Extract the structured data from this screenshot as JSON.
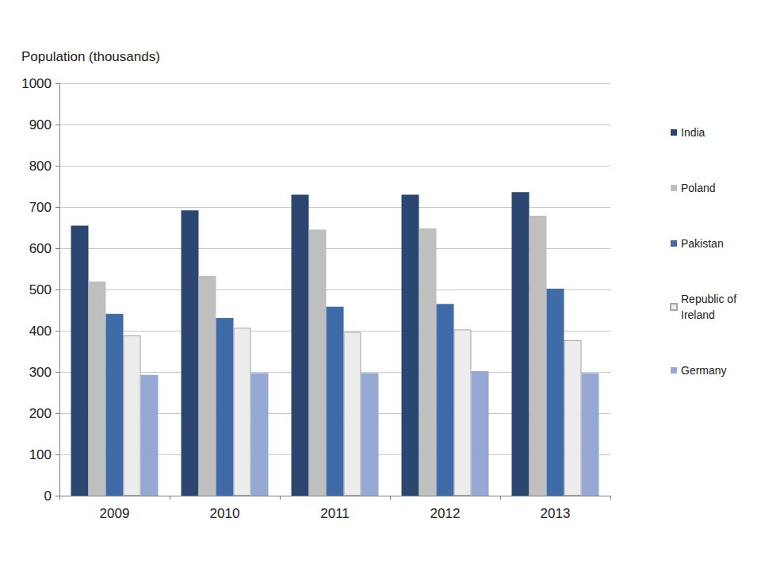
{
  "chart_data": {
    "type": "bar",
    "y_label": "Population (thousands)",
    "categories": [
      "2009",
      "2010",
      "2011",
      "2012",
      "2013"
    ],
    "series": [
      {
        "name": "India",
        "color": "#2b4670",
        "values": [
          655,
          692,
          730,
          730,
          736
        ]
      },
      {
        "name": "Poland",
        "color": "#bfbfbf",
        "values": [
          519,
          533,
          645,
          648,
          679
        ]
      },
      {
        "name": "Pakistan",
        "color": "#3f6ba9",
        "values": [
          441,
          431,
          458,
          465,
          502
        ]
      },
      {
        "name": "Republic of Ireland",
        "color": "#ececec",
        "values": [
          389,
          407,
          397,
          403,
          377
        ]
      },
      {
        "name": "Germany",
        "color": "#95a9d4",
        "values": [
          293,
          297,
          297,
          302,
          297
        ]
      }
    ],
    "ylim": [
      0,
      1000
    ],
    "yticks": [
      0,
      100,
      200,
      300,
      400,
      500,
      600,
      700,
      800,
      900,
      1000
    ],
    "grid": true,
    "legend": "right"
  }
}
